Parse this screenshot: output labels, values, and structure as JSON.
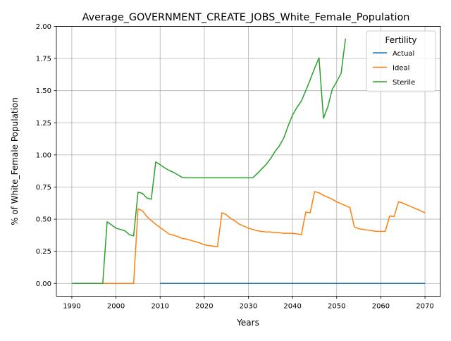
{
  "chart_data": {
    "type": "line",
    "title": "Average_GOVERNMENT_CREATE_JOBS_White_Female_Population",
    "xlabel": "Years",
    "ylabel": "% of White_Female Population",
    "xlim": [
      1986.5,
      2073.5
    ],
    "ylim": [
      -0.1,
      2.0
    ],
    "x_ticks": [
      1990,
      2000,
      2010,
      2020,
      2030,
      2040,
      2050,
      2060,
      2070
    ],
    "y_ticks": [
      0.0,
      0.25,
      0.5,
      0.75,
      1.0,
      1.25,
      1.5,
      1.75,
      2.0
    ],
    "y_tick_labels": [
      "0.00",
      "0.25",
      "0.50",
      "0.75",
      "1.00",
      "1.25",
      "1.50",
      "1.75",
      "2.00"
    ],
    "grid": true,
    "legend": {
      "title": "Fertility",
      "position": "top-right"
    },
    "series": [
      {
        "name": "Actual",
        "color": "#1f77b4",
        "points": [
          [
            2010,
            0.0
          ],
          [
            2070,
            0.0
          ]
        ]
      },
      {
        "name": "Ideal",
        "color": "#ff7f0e",
        "points": [
          [
            1997,
            0.0
          ],
          [
            2004,
            0.0
          ],
          [
            2005,
            0.58
          ],
          [
            2006,
            0.565
          ],
          [
            2007,
            0.52
          ],
          [
            2008,
            0.49
          ],
          [
            2009,
            0.46
          ],
          [
            2010,
            0.435
          ],
          [
            2011,
            0.41
          ],
          [
            2012,
            0.385
          ],
          [
            2013,
            0.375
          ],
          [
            2014,
            0.365
          ],
          [
            2015,
            0.35
          ],
          [
            2016,
            0.345
          ],
          [
            2017,
            0.335
          ],
          [
            2018,
            0.325
          ],
          [
            2019,
            0.315
          ],
          [
            2020,
            0.3
          ],
          [
            2021,
            0.295
          ],
          [
            2022,
            0.29
          ],
          [
            2023,
            0.285
          ],
          [
            2024,
            0.55
          ],
          [
            2025,
            0.535
          ],
          [
            2026,
            0.505
          ],
          [
            2027,
            0.485
          ],
          [
            2028,
            0.46
          ],
          [
            2029,
            0.445
          ],
          [
            2030,
            0.43
          ],
          [
            2031,
            0.42
          ],
          [
            2032,
            0.41
          ],
          [
            2033,
            0.405
          ],
          [
            2034,
            0.4
          ],
          [
            2035,
            0.4
          ],
          [
            2036,
            0.395
          ],
          [
            2037,
            0.395
          ],
          [
            2038,
            0.39
          ],
          [
            2039,
            0.39
          ],
          [
            2040,
            0.39
          ],
          [
            2041,
            0.385
          ],
          [
            2042,
            0.38
          ],
          [
            2043,
            0.555
          ],
          [
            2044,
            0.55
          ],
          [
            2045,
            0.715
          ],
          [
            2046,
            0.705
          ],
          [
            2047,
            0.685
          ],
          [
            2048,
            0.67
          ],
          [
            2049,
            0.655
          ],
          [
            2050,
            0.635
          ],
          [
            2051,
            0.62
          ],
          [
            2052,
            0.605
          ],
          [
            2053,
            0.59
          ],
          [
            2054,
            0.44
          ],
          [
            2055,
            0.425
          ],
          [
            2056,
            0.42
          ],
          [
            2057,
            0.415
          ],
          [
            2058,
            0.41
          ],
          [
            2059,
            0.405
          ],
          [
            2060,
            0.405
          ],
          [
            2061,
            0.405
          ],
          [
            2062,
            0.525
          ],
          [
            2063,
            0.52
          ],
          [
            2064,
            0.635
          ],
          [
            2065,
            0.625
          ],
          [
            2066,
            0.61
          ],
          [
            2067,
            0.595
          ],
          [
            2068,
            0.58
          ],
          [
            2069,
            0.565
          ],
          [
            2070,
            0.55
          ]
        ]
      },
      {
        "name": "Sterile",
        "color": "#2ca02c",
        "points": [
          [
            1990,
            0.0
          ],
          [
            1997,
            0.0
          ],
          [
            1998,
            0.48
          ],
          [
            1999,
            0.455
          ],
          [
            2000,
            0.43
          ],
          [
            2001,
            0.42
          ],
          [
            2002,
            0.41
          ],
          [
            2003,
            0.38
          ],
          [
            2004,
            0.37
          ],
          [
            2005,
            0.71
          ],
          [
            2006,
            0.7
          ],
          [
            2007,
            0.665
          ],
          [
            2008,
            0.655
          ],
          [
            2009,
            0.945
          ],
          [
            2010,
            0.925
          ],
          [
            2011,
            0.9
          ],
          [
            2012,
            0.88
          ],
          [
            2013,
            0.865
          ],
          [
            2014,
            0.845
          ],
          [
            2015,
            0.825
          ],
          [
            2016,
            0.822
          ],
          [
            2017,
            0.822
          ],
          [
            2018,
            0.822
          ],
          [
            2019,
            0.822
          ],
          [
            2020,
            0.822
          ],
          [
            2021,
            0.822
          ],
          [
            2022,
            0.822
          ],
          [
            2023,
            0.822
          ],
          [
            2024,
            0.822
          ],
          [
            2025,
            0.822
          ],
          [
            2026,
            0.822
          ],
          [
            2027,
            0.822
          ],
          [
            2028,
            0.822
          ],
          [
            2029,
            0.822
          ],
          [
            2030,
            0.822
          ],
          [
            2031,
            0.822
          ],
          [
            2032,
            0.855
          ],
          [
            2033,
            0.89
          ],
          [
            2034,
            0.925
          ],
          [
            2035,
            0.97
          ],
          [
            2036,
            1.025
          ],
          [
            2037,
            1.07
          ],
          [
            2038,
            1.13
          ],
          [
            2039,
            1.225
          ],
          [
            2040,
            1.31
          ],
          [
            2041,
            1.37
          ],
          [
            2042,
            1.42
          ],
          [
            2043,
            1.5
          ],
          [
            2044,
            1.585
          ],
          [
            2045,
            1.675
          ],
          [
            2046,
            1.755
          ],
          [
            2047,
            1.285
          ],
          [
            2048,
            1.375
          ],
          [
            2049,
            1.51
          ],
          [
            2050,
            1.57
          ],
          [
            2051,
            1.635
          ],
          [
            2052,
            1.905
          ]
        ]
      }
    ]
  }
}
